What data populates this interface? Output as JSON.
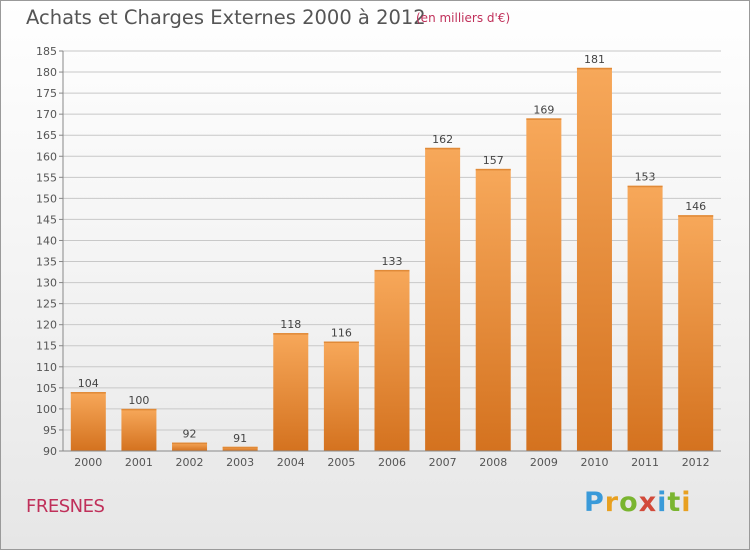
{
  "header": {
    "title": "Achats et Charges Externes 2000 à 2012",
    "unit": "(en milliers d'€)"
  },
  "footer": {
    "commune": "FRESNES",
    "brand": "Proxiti"
  },
  "colors": {
    "bar_top": "#f7a85a",
    "bar_bottom": "#d4721f",
    "grid": "#c8c8c8",
    "text": "#555555",
    "accent": "#c0305a",
    "brand_letters": [
      "#3a9ad9",
      "#e8a020",
      "#7ab530",
      "#d24a3a",
      "#3a9ad9",
      "#7ab530",
      "#e8a020"
    ]
  },
  "chart_data": {
    "type": "bar",
    "categories": [
      "2000",
      "2001",
      "2002",
      "2003",
      "2004",
      "2005",
      "2006",
      "2007",
      "2008",
      "2009",
      "2010",
      "2011",
      "2012"
    ],
    "values": [
      104,
      100,
      92,
      91,
      118,
      116,
      133,
      162,
      157,
      169,
      181,
      153,
      146
    ],
    "title": "Achats et Charges Externes 2000 à 2012",
    "ylim": [
      90,
      185
    ],
    "yticks": [
      90,
      95,
      100,
      105,
      110,
      115,
      120,
      125,
      130,
      135,
      140,
      145,
      150,
      155,
      160,
      165,
      170,
      175,
      180,
      185
    ],
    "grid": true,
    "data_labels": true
  }
}
